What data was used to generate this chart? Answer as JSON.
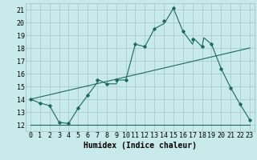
{
  "title": "",
  "xlabel": "Humidex (Indice chaleur)",
  "ylabel": "",
  "bg_color": "#c8eaea",
  "grid_color": "#a8cccc",
  "line_color": "#1a6b5a",
  "xlim": [
    -0.5,
    23.5
  ],
  "ylim": [
    11.5,
    21.5
  ],
  "xticks": [
    0,
    1,
    2,
    3,
    4,
    5,
    6,
    7,
    8,
    9,
    10,
    11,
    12,
    13,
    14,
    15,
    16,
    17,
    18,
    19,
    20,
    21,
    22,
    23
  ],
  "yticks": [
    12,
    13,
    14,
    15,
    16,
    17,
    18,
    19,
    20,
    21
  ],
  "curve1_x": [
    0,
    1,
    2,
    3,
    4,
    5,
    6,
    7,
    7.2,
    8,
    9,
    9.2,
    10,
    11,
    12,
    13,
    14,
    14.2,
    15,
    16,
    17,
    17.2,
    18,
    18.2,
    19,
    20,
    21,
    22,
    23
  ],
  "curve1_y": [
    14,
    13.7,
    13.5,
    12.2,
    12.1,
    13.3,
    14.3,
    15.3,
    15.5,
    15.2,
    15.2,
    15.5,
    15.5,
    18.3,
    18.1,
    19.5,
    19.9,
    20.1,
    21.1,
    19.3,
    18.3,
    18.7,
    18.1,
    18.8,
    18.3,
    16.4,
    14.9,
    13.6,
    12.4
  ],
  "line2_x": [
    0,
    23
  ],
  "line2_y": [
    12.0,
    12.0
  ],
  "line3_x": [
    0,
    23
  ],
  "line3_y": [
    14.0,
    18.0
  ],
  "marker_x": [
    0,
    1,
    2,
    3,
    4,
    5,
    6,
    7,
    8,
    9,
    10,
    11,
    12,
    13,
    14,
    15,
    16,
    17,
    18,
    19,
    20,
    21,
    22,
    23
  ],
  "marker_y": [
    14,
    13.7,
    13.5,
    12.2,
    12.1,
    13.3,
    14.3,
    15.5,
    15.2,
    15.5,
    15.5,
    18.3,
    18.1,
    19.5,
    20.1,
    21.1,
    19.3,
    18.7,
    18.1,
    18.3,
    16.4,
    14.9,
    13.6,
    12.4
  ],
  "xlabel_fontsize": 7,
  "tick_fontsize": 6
}
